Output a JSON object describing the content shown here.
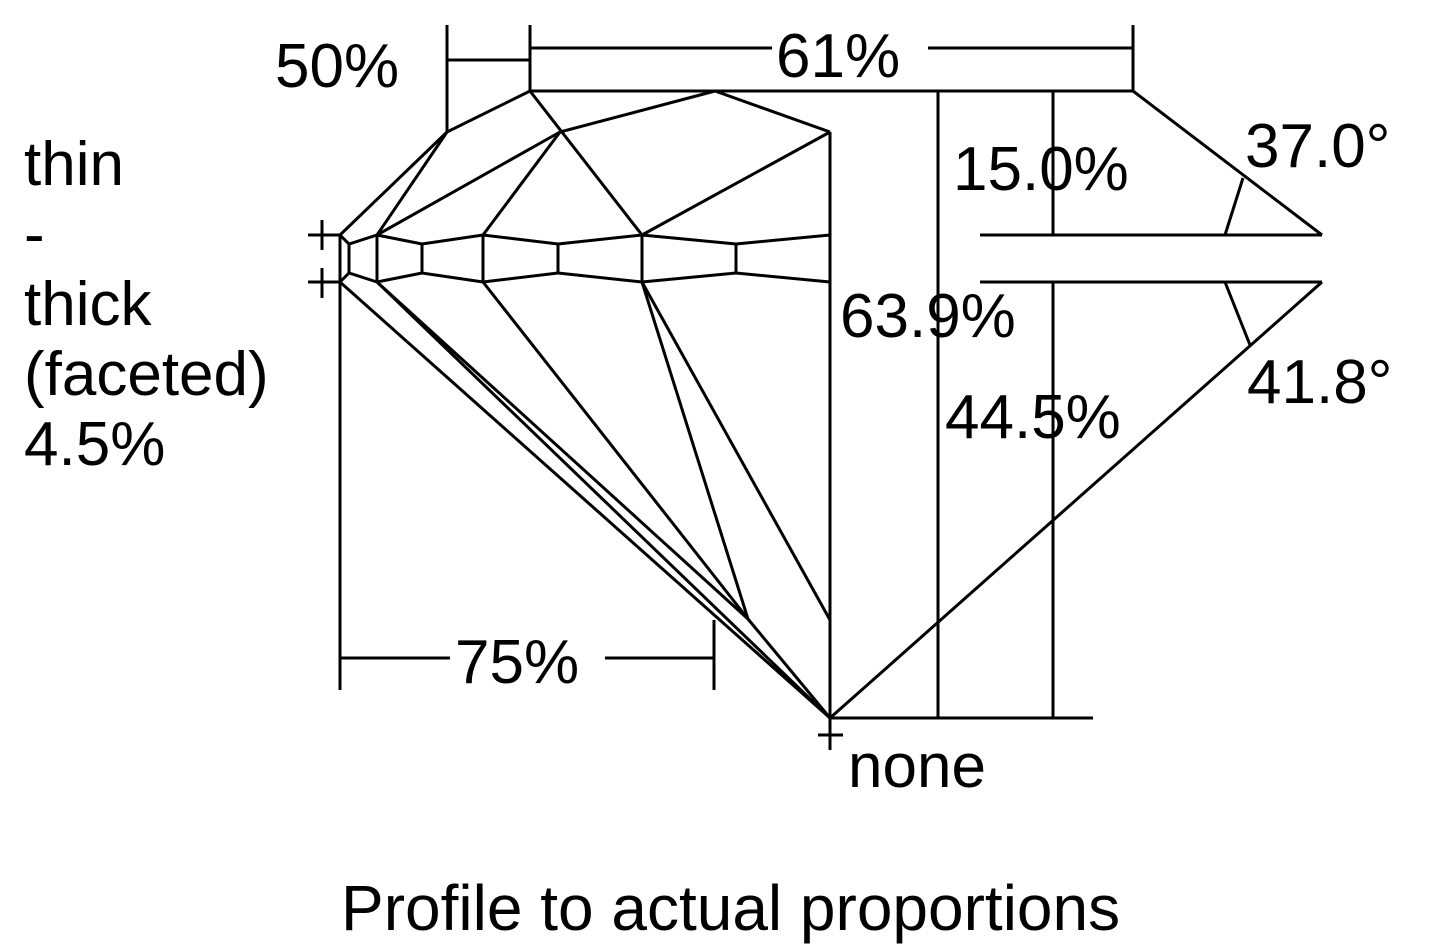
{
  "labels": {
    "star_length": "50%",
    "table": "61%",
    "crown_height": "15.0%",
    "crown_angle": "37.0°",
    "girdle_line1": "thin",
    "girdle_line2": "-",
    "girdle_line3": "thick",
    "girdle_line4": "(faceted)",
    "girdle_value": "4.5%",
    "total_depth": "63.9%",
    "pavilion_depth": "44.5%",
    "pavilion_angle": "41.8°",
    "lower_half": "75%",
    "culet": "none"
  },
  "caption": "Profile to actual proportions",
  "colors": {
    "stroke": "#000000",
    "background": "#ffffff"
  }
}
